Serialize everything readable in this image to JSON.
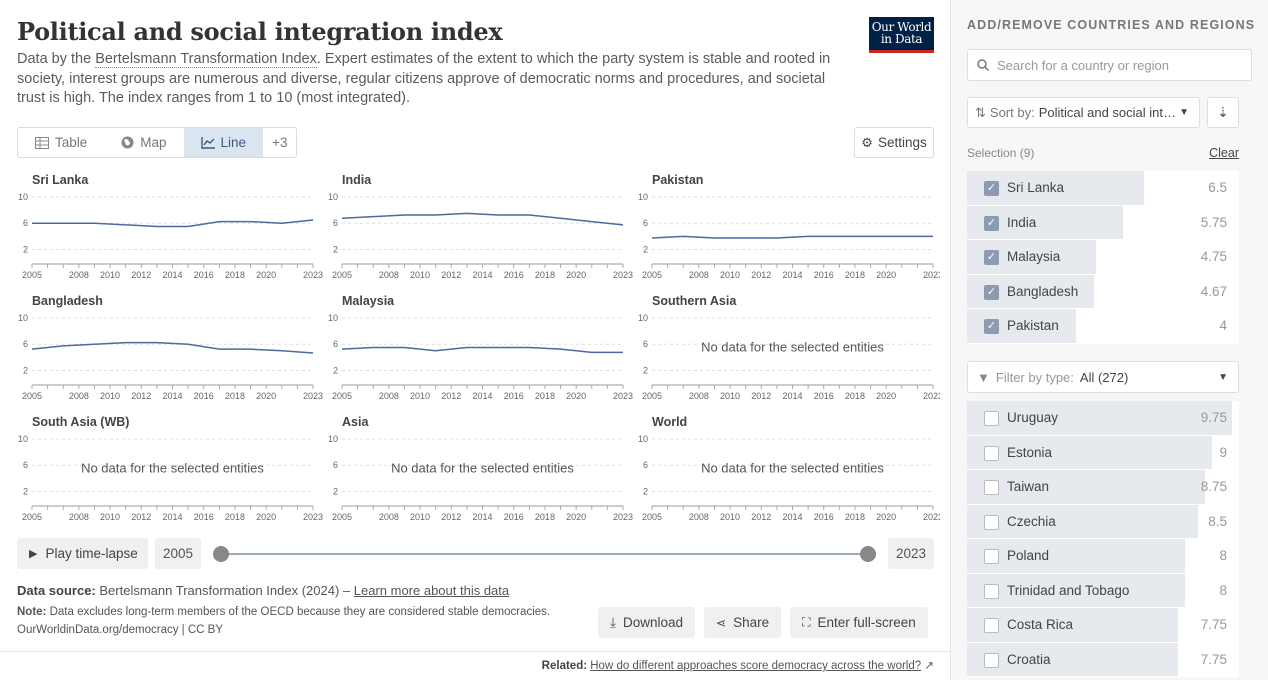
{
  "header": {
    "title": "Political and social integration index",
    "subtitle_pre": "Data by the ",
    "subtitle_link": "Bertelsmann Transformation Index",
    "subtitle_post": ". Expert estimates of the extent to which the party system is stable and rooted in society, interest groups are numerous and diverse, regular citizens approve of democratic norms and procedures, and societal trust is high. The index ranges from 1 to 10 (most integrated).",
    "logo_line1": "Our World",
    "logo_line2": "in Data"
  },
  "tabs": [
    {
      "label": "Table",
      "icon": "table-icon"
    },
    {
      "label": "Map",
      "icon": "globe-icon"
    },
    {
      "label": "Line",
      "icon": "line-chart-icon"
    }
  ],
  "tabs_more": "+3",
  "settings_label": "Settings",
  "chart_data": {
    "type": "line",
    "x": [
      2005,
      2007,
      2009,
      2011,
      2013,
      2015,
      2017,
      2019,
      2021,
      2023
    ],
    "xticks": [
      "2005",
      "2008",
      "2010",
      "2012",
      "2014",
      "2016",
      "2018",
      "2020",
      "2023"
    ],
    "xtick_years": [
      2005,
      2008,
      2010,
      2012,
      2014,
      2016,
      2018,
      2020,
      2023
    ],
    "yticks": [
      "10",
      "6",
      "2"
    ],
    "ylim": [
      1,
      10
    ],
    "no_data_text": "No data for the selected entities",
    "panels": [
      {
        "name": "Sri Lanka",
        "values": [
          6,
          6,
          6,
          5.75,
          5.5,
          5.5,
          6.25,
          6.25,
          6,
          6.5
        ]
      },
      {
        "name": "India",
        "values": [
          6.75,
          7,
          7.25,
          7.25,
          7.5,
          7.25,
          7.25,
          6.75,
          6.25,
          5.75
        ]
      },
      {
        "name": "Pakistan",
        "values": [
          3.75,
          4,
          3.75,
          3.75,
          3.75,
          4,
          4,
          4,
          4,
          4
        ]
      },
      {
        "name": "Bangladesh",
        "values": [
          5.25,
          5.75,
          6,
          6.25,
          6.25,
          6,
          5.25,
          5.25,
          5,
          4.67
        ]
      },
      {
        "name": "Malaysia",
        "values": [
          5.25,
          5.5,
          5.5,
          5,
          5.5,
          5.5,
          5.5,
          5.25,
          4.75,
          4.75
        ]
      },
      {
        "name": "Southern Asia",
        "values": null
      },
      {
        "name": "South Asia (WB)",
        "values": null
      },
      {
        "name": "Asia",
        "values": null
      },
      {
        "name": "World",
        "values": null
      }
    ]
  },
  "timeline": {
    "play_label": "Play time-lapse",
    "start": "2005",
    "end": "2023"
  },
  "footer": {
    "source_label": "Data source:",
    "source": "Bertelsmann Transformation Index (2024) –",
    "source_link": "Learn more about this data",
    "note_label": "Note:",
    "note": "Data excludes long-term members of the OECD because they are considered stable democracies.",
    "url": "OurWorldinData.org/democracy | CC BY"
  },
  "actions": {
    "download": "Download",
    "share": "Share",
    "fullscreen": "Enter full-screen"
  },
  "related": {
    "label": "Related:",
    "link": "How do different approaches score democracy across the world?"
  },
  "sidebar": {
    "title": "ADD/REMOVE COUNTRIES AND REGIONS",
    "search_placeholder": "Search for a country or region",
    "sort_label": "Sort by:",
    "sort_value": "Political and social integration index",
    "selection_label": "Selection (9)",
    "clear_label": "Clear",
    "selected": [
      {
        "name": "Sri Lanka",
        "value": "6.5",
        "frac": 0.65
      },
      {
        "name": "India",
        "value": "5.75",
        "frac": 0.575
      },
      {
        "name": "Malaysia",
        "value": "4.75",
        "frac": 0.475
      },
      {
        "name": "Bangladesh",
        "value": "4.67",
        "frac": 0.467
      },
      {
        "name": "Pakistan",
        "value": "4",
        "frac": 0.4
      }
    ],
    "filter_label": "Filter by type:",
    "filter_value": "All (272)",
    "others": [
      {
        "name": "Uruguay",
        "value": "9.75",
        "frac": 0.975
      },
      {
        "name": "Estonia",
        "value": "9",
        "frac": 0.9
      },
      {
        "name": "Taiwan",
        "value": "8.75",
        "frac": 0.875
      },
      {
        "name": "Czechia",
        "value": "8.5",
        "frac": 0.85
      },
      {
        "name": "Poland",
        "value": "8",
        "frac": 0.8
      },
      {
        "name": "Trinidad and Tobago",
        "value": "8",
        "frac": 0.8
      },
      {
        "name": "Costa Rica",
        "value": "7.75",
        "frac": 0.775
      },
      {
        "name": "Croatia",
        "value": "7.75",
        "frac": 0.775
      }
    ]
  }
}
